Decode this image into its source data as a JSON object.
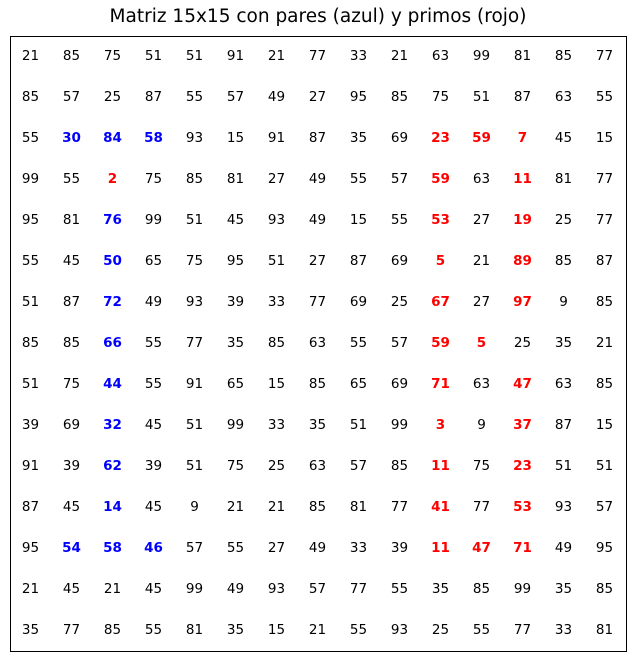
{
  "chart_data": {
    "type": "table",
    "title": "Matriz 15x15 con pares (azul) y primos (rojo)",
    "rows": [
      [
        21,
        85,
        75,
        51,
        51,
        91,
        21,
        77,
        33,
        21,
        63,
        99,
        81,
        85,
        77
      ],
      [
        85,
        57,
        25,
        87,
        55,
        57,
        49,
        27,
        95,
        85,
        75,
        51,
        87,
        63,
        55
      ],
      [
        55,
        30,
        84,
        58,
        93,
        15,
        91,
        87,
        35,
        69,
        23,
        59,
        7,
        45,
        15
      ],
      [
        99,
        55,
        2,
        75,
        85,
        81,
        27,
        49,
        55,
        57,
        59,
        63,
        11,
        81,
        77
      ],
      [
        95,
        81,
        76,
        99,
        51,
        45,
        93,
        49,
        15,
        55,
        53,
        27,
        19,
        25,
        77
      ],
      [
        55,
        45,
        50,
        65,
        75,
        95,
        51,
        27,
        87,
        69,
        5,
        21,
        89,
        85,
        87
      ],
      [
        51,
        87,
        72,
        49,
        93,
        39,
        33,
        77,
        69,
        25,
        67,
        27,
        97,
        9,
        85
      ],
      [
        85,
        85,
        66,
        55,
        77,
        35,
        85,
        63,
        55,
        57,
        59,
        5,
        25,
        35,
        21
      ],
      [
        51,
        75,
        44,
        55,
        91,
        65,
        15,
        85,
        65,
        69,
        71,
        63,
        47,
        63,
        85
      ],
      [
        39,
        69,
        32,
        45,
        51,
        99,
        33,
        35,
        51,
        99,
        3,
        9,
        37,
        87,
        15
      ],
      [
        91,
        39,
        62,
        39,
        51,
        75,
        25,
        63,
        57,
        85,
        11,
        75,
        23,
        51,
        51
      ],
      [
        87,
        45,
        14,
        45,
        9,
        21,
        21,
        85,
        81,
        77,
        41,
        77,
        53,
        93,
        57
      ],
      [
        95,
        54,
        58,
        46,
        57,
        55,
        27,
        49,
        33,
        39,
        11,
        47,
        71,
        49,
        95
      ],
      [
        21,
        45,
        21,
        45,
        99,
        49,
        93,
        57,
        77,
        55,
        35,
        85,
        99,
        35,
        85
      ],
      [
        35,
        77,
        85,
        55,
        81,
        35,
        15,
        21,
        55,
        93,
        25,
        55,
        77,
        33,
        81
      ]
    ],
    "highlighted": [
      [
        0,
        0,
        0,
        0,
        0,
        0,
        0,
        0,
        0,
        0,
        0,
        0,
        0,
        0,
        0
      ],
      [
        0,
        0,
        0,
        0,
        0,
        0,
        0,
        0,
        0,
        0,
        0,
        0,
        0,
        0,
        0
      ],
      [
        0,
        1,
        1,
        1,
        0,
        0,
        0,
        0,
        0,
        0,
        2,
        2,
        2,
        0,
        0
      ],
      [
        0,
        0,
        2,
        0,
        0,
        0,
        0,
        0,
        0,
        0,
        2,
        0,
        2,
        0,
        0
      ],
      [
        0,
        0,
        1,
        0,
        0,
        0,
        0,
        0,
        0,
        0,
        2,
        0,
        2,
        0,
        0
      ],
      [
        0,
        0,
        1,
        0,
        0,
        0,
        0,
        0,
        0,
        0,
        2,
        0,
        2,
        0,
        0
      ],
      [
        0,
        0,
        1,
        0,
        0,
        0,
        0,
        0,
        0,
        0,
        2,
        0,
        2,
        0,
        0
      ],
      [
        0,
        0,
        1,
        0,
        0,
        0,
        0,
        0,
        0,
        0,
        2,
        2,
        0,
        0,
        0
      ],
      [
        0,
        0,
        1,
        0,
        0,
        0,
        0,
        0,
        0,
        0,
        2,
        0,
        2,
        0,
        0
      ],
      [
        0,
        0,
        1,
        0,
        0,
        0,
        0,
        0,
        0,
        0,
        2,
        0,
        2,
        0,
        0
      ],
      [
        0,
        0,
        1,
        0,
        0,
        0,
        0,
        0,
        0,
        0,
        2,
        0,
        2,
        0,
        0
      ],
      [
        0,
        0,
        1,
        0,
        0,
        0,
        0,
        0,
        0,
        0,
        2,
        0,
        2,
        0,
        0
      ],
      [
        0,
        1,
        1,
        1,
        0,
        0,
        0,
        0,
        0,
        0,
        2,
        2,
        2,
        0,
        0
      ],
      [
        0,
        0,
        0,
        0,
        0,
        0,
        0,
        0,
        0,
        0,
        0,
        0,
        0,
        0,
        0
      ],
      [
        0,
        0,
        0,
        0,
        0,
        0,
        0,
        0,
        0,
        0,
        0,
        0,
        0,
        0,
        0
      ]
    ],
    "highlight_legend": {
      "0": "normal",
      "1": "par",
      "2": "primo"
    },
    "colors": {
      "normal": "#000000",
      "par": "#0000ff",
      "primo": "#ff0000"
    },
    "grid": false
  }
}
